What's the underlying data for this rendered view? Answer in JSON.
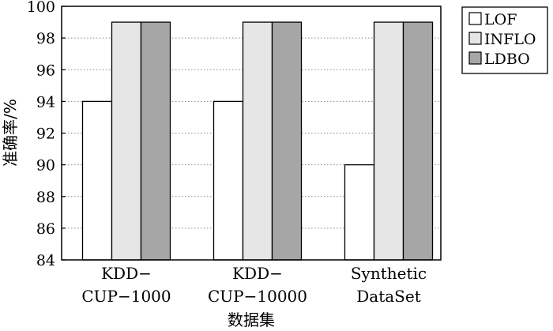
{
  "chart_data": {
    "type": "bar",
    "title": "",
    "xlabel": "数据集",
    "ylabel": "准确率/%",
    "ylim": [
      84,
      100
    ],
    "yticks": [
      84,
      86,
      88,
      90,
      92,
      94,
      96,
      98,
      100
    ],
    "grid": true,
    "legend_position": "top-right",
    "categories": [
      [
        "KDD−",
        "CUP−1000"
      ],
      [
        "KDD−",
        "CUP−10000"
      ],
      [
        "Synthetic",
        "DataSet"
      ]
    ],
    "series": [
      {
        "name": "LOF",
        "values": [
          94,
          94,
          90
        ],
        "color": "#ffffff"
      },
      {
        "name": "INFLO",
        "values": [
          99,
          99,
          99
        ],
        "color": "#e6e6e6"
      },
      {
        "name": "LDBO",
        "values": [
          99,
          99,
          99
        ],
        "color": "#a6a6a6"
      }
    ]
  }
}
